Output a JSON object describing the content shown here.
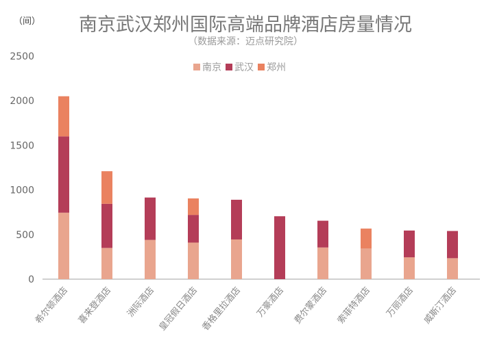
{
  "chart_data": {
    "type": "bar",
    "stacked": true,
    "title": "南京武汉郑州国际高端品牌酒店房量情况",
    "subtitle": "（数据来源：迈点研究院）",
    "ylabel": "（间）",
    "ylim": [
      0,
      2500
    ],
    "yticks": [
      0,
      500,
      1000,
      1500,
      2000,
      2500
    ],
    "legend_position": "top-center",
    "categories": [
      "希尔顿酒店",
      "喜来登酒店",
      "洲际酒店",
      "皇冠假日酒店",
      "香格里拉酒店",
      "万豪酒店",
      "费尔蒙酒店",
      "索菲特酒店",
      "万丽酒店",
      "威斯汀酒店"
    ],
    "series": [
      {
        "name": "南京",
        "color": "#e9a58e",
        "values": [
          745,
          350,
          440,
          410,
          445,
          0,
          355,
          345,
          245,
          235
        ]
      },
      {
        "name": "武汉",
        "color": "#b43d58",
        "values": [
          855,
          495,
          475,
          310,
          445,
          705,
          300,
          0,
          300,
          305
        ]
      },
      {
        "name": "郑州",
        "color": "#ea8260",
        "values": [
          450,
          365,
          0,
          185,
          0,
          0,
          0,
          222,
          0,
          0
        ]
      }
    ]
  }
}
